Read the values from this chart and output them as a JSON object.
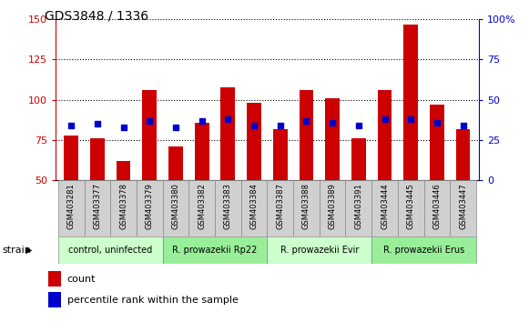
{
  "title": "GDS3848 / 1336",
  "samples": [
    "GSM403281",
    "GSM403377",
    "GSM403378",
    "GSM403379",
    "GSM403380",
    "GSM403382",
    "GSM403383",
    "GSM403384",
    "GSM403387",
    "GSM403388",
    "GSM403389",
    "GSM403391",
    "GSM403444",
    "GSM403445",
    "GSM403446",
    "GSM403447"
  ],
  "count_values": [
    78,
    76,
    62,
    106,
    71,
    86,
    108,
    98,
    82,
    106,
    101,
    76,
    106,
    147,
    97,
    82
  ],
  "percentile_left": [
    84,
    85,
    83,
    87,
    83,
    87,
    88,
    84,
    84,
    87,
    86,
    84,
    88,
    88,
    86,
    84
  ],
  "groups": [
    {
      "label": "control, uninfected",
      "start": 0,
      "end": 4
    },
    {
      "label": "R. prowazekii Rp22",
      "start": 4,
      "end": 8
    },
    {
      "label": "R. prowazekii Evir",
      "start": 8,
      "end": 12
    },
    {
      "label": "R. prowazekii Erus",
      "start": 12,
      "end": 16
    }
  ],
  "group_colors": [
    "#ccffcc",
    "#99ee99",
    "#ccffcc",
    "#99ee99"
  ],
  "ylim_left": [
    50,
    150
  ],
  "ylim_right": [
    0,
    100
  ],
  "yticks_left": [
    50,
    75,
    100,
    125,
    150
  ],
  "yticks_right": [
    0,
    25,
    50,
    75,
    100
  ],
  "ytick_labels_right": [
    "0",
    "25",
    "50",
    "75",
    "100%"
  ],
  "bar_color": "#cc0000",
  "dot_color": "#0000cc",
  "left_axis_color": "#cc0000",
  "right_axis_color": "#0000cc",
  "label_count": "count",
  "label_percentile": "percentile rank within the sample",
  "strain_label": "strain",
  "bar_width": 0.55,
  "sample_box_color": "#d0d0d0",
  "dot_size": 5
}
